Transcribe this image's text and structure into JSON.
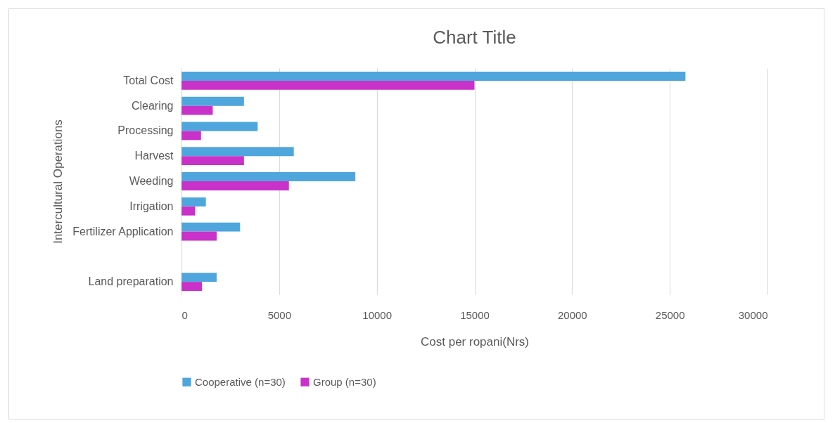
{
  "chart_data": {
    "type": "bar",
    "orientation": "horizontal",
    "title": "Chart Title",
    "xlabel": "Cost per ropani(Nrs)",
    "ylabel": "Intercultural Operations",
    "categories": [
      "Total Cost",
      "Clearing ",
      "Processing",
      "Harvest",
      "Weeding",
      "Irrigation",
      "Fertilizer Application",
      null,
      "Land preparation"
    ],
    "series": [
      {
        "name": "Cooperative (n=30)",
        "color": "#4ea6dc",
        "values": [
          25800,
          3200,
          3900,
          5750,
          8900,
          1250,
          3000,
          null,
          1800
        ]
      },
      {
        "name": "Group (n=30)",
        "color": "#c832c8",
        "values": [
          15000,
          1600,
          1000,
          3200,
          5500,
          700,
          1800,
          null,
          1050
        ]
      }
    ],
    "xlim": [
      0,
      30000
    ],
    "xticks": [
      0,
      5000,
      10000,
      15000,
      20000,
      25000,
      30000
    ],
    "grid": "x",
    "legend": "bottom"
  }
}
